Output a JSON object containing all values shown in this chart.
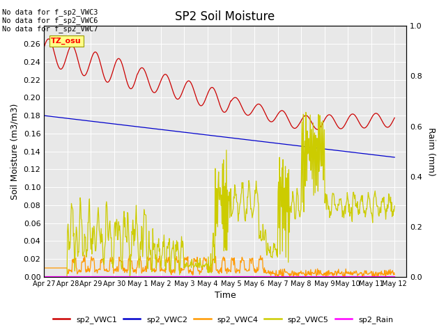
{
  "title": "SP2 Soil Moisture",
  "ylabel_left": "Soil Moisture (m3/m3)",
  "ylabel_right": "Raim (mm)",
  "xlabel": "Time",
  "no_data_text": [
    "No data for f_sp2_VWC3",
    "No data for f_sp2_VWC6",
    "No data for f_sp2_VWC7"
  ],
  "tz_label": "TZ_osu",
  "xlim_days": [
    0,
    15.5
  ],
  "ylim_left": [
    0.0,
    0.28
  ],
  "ylim_right": [
    0.0,
    1.0
  ],
  "yticks_left": [
    0.0,
    0.02,
    0.04,
    0.06,
    0.08,
    0.1,
    0.12,
    0.14,
    0.16,
    0.18,
    0.2,
    0.22,
    0.24,
    0.26
  ],
  "yticks_right": [
    0.0,
    0.2,
    0.4,
    0.6,
    0.8,
    1.0
  ],
  "xtick_positions": [
    0,
    1,
    2,
    3,
    4,
    5,
    6,
    7,
    8,
    9,
    10,
    11,
    12,
    13,
    14,
    15
  ],
  "xtick_labels": [
    "Apr 27",
    "Apr 28",
    "Apr 29",
    "Apr 30",
    "May 1",
    "May 2",
    "May 3",
    "May 4",
    "May 5",
    "May 6",
    "May 7",
    "May 8",
    "May 9",
    "May 10",
    "May 11",
    "May 12"
  ],
  "colors": {
    "sp2_VWC1": "#cc0000",
    "sp2_VWC2": "#0000cc",
    "sp2_VWC4": "#ff9900",
    "sp2_VWC5": "#cccc00",
    "sp2_Rain": "#ff00ff",
    "background": "#e8e8e8",
    "grid": "#ffffff"
  },
  "legend_entries": [
    "sp2_VWC1",
    "sp2_VWC2",
    "sp2_VWC4",
    "sp2_VWC5",
    "sp2_Rain"
  ],
  "figsize": [
    6.4,
    4.8
  ],
  "dpi": 100
}
